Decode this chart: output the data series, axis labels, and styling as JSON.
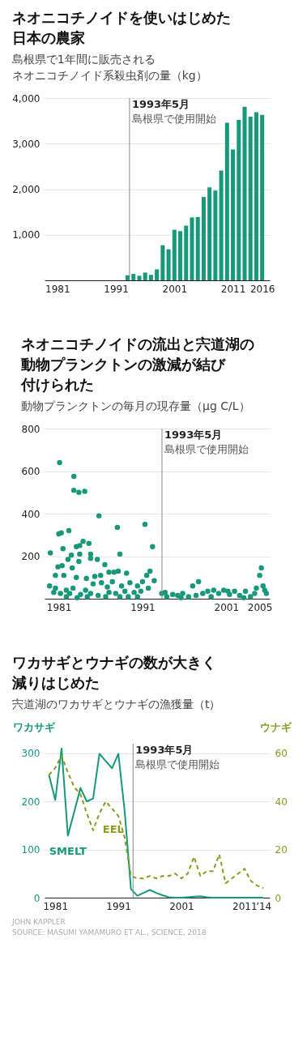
{
  "chart_data": [
    {
      "type": "bar",
      "title": "ネオニコチノイドを使いはじめた日本の農家",
      "subtitle": "島根県で1年間に販売されるネオニコチノイド系殺虫剤の量（kg）",
      "x": [
        1993,
        1994,
        1995,
        1996,
        1997,
        1998,
        1999,
        2000,
        2001,
        2002,
        2003,
        2004,
        2005,
        2006,
        2007,
        2008,
        2009,
        2010,
        2011,
        2012,
        2013,
        2014,
        2015,
        2016
      ],
      "values": [
        110,
        140,
        100,
        170,
        120,
        240,
        770,
        680,
        1110,
        1080,
        1200,
        1380,
        1390,
        1830,
        2040,
        1970,
        2410,
        3460,
        2870,
        3520,
        3810,
        3590,
        3690,
        3630
      ],
      "color": "#17987a",
      "xlim": [
        1979.5,
        2016.6
      ],
      "xticks": [
        1981,
        1991,
        2001,
        2011,
        2016
      ],
      "ylim": [
        0,
        4000
      ],
      "yticks": [
        {
          "value": 1000,
          "label": "1,000"
        },
        {
          "value": 2000,
          "label": "2,000"
        },
        {
          "value": 3000,
          "label": "3,000"
        },
        {
          "value": 4000,
          "label": "4,000"
        }
      ],
      "grid": "y",
      "ref_lines": [
        {
          "axis": "x",
          "value": 1993.33,
          "label": "1993年5月島根県で使用開始",
          "color": "#888888"
        }
      ]
    },
    {
      "type": "scatter",
      "title": "ネオニコチノイドの流出と宍道湖の動物プランクトンの激減が結び付けられた",
      "subtitle": "動物プランクトンの毎月の現存量（μg C/L）",
      "x": [
        1981.1,
        1982.8,
        1982.8,
        1983.4,
        1984.1,
        1985.8,
        1991.3,
        1988.0,
        1982.2,
        1981.0,
        1981.3,
        1983.9,
        1984.6,
        1983.1,
        1983.5,
        1992.2,
        1981.5,
        1980.0,
        1982.5,
        1983.5,
        1984.8,
        1988.3,
        1982.1,
        1983.4,
        1984.8,
        1985.6,
        1980.9,
        1981.4,
        1986.5,
        1982.6,
        1980.6,
        1981.6,
        1983.1,
        1984.3,
        1985.3,
        1986.0,
        1987.0,
        1987.6,
        1988.1,
        1989.1,
        1991.9,
        1991.5,
        1992.4,
        1979.9,
        1980.6,
        1981.9,
        1982.7,
        1984.2,
        1985.1,
        1986.1,
        1986.8,
        1987.4,
        1988.5,
        1989.5,
        1990.4,
        1991.0,
        1991.7,
        1980.4,
        1981.2,
        1982.3,
        1983.6,
        1984.8,
        1985.7,
        1987.0,
        1987.8,
        1988.9,
        1990.0,
        1990.8,
        1981.9,
        1983.2,
        1984.4,
        1986.6,
        1988.3,
        1989.3,
        1990.4,
        1993.3,
        1993.9,
        1994.6,
        1995.2,
        1995.8,
        1996.5,
        1997.0,
        1997.7,
        1998.2,
        1998.8,
        1999.5,
        2000.1,
        2000.7,
        2001.4,
        2002.0,
        2002.6,
        2003.3,
        2003.9,
        2004.6,
        2005.0,
        2005.2,
        2005.4,
        2005.8,
        1993.7,
        1995.6,
        1997.4,
        1999.2,
        2001.2,
        2003.1,
        2004.4,
        2005.6
      ],
      "values": [
        640,
        575,
        510,
        500,
        505,
        390,
        350,
        335,
        320,
        305,
        310,
        270,
        260,
        245,
        250,
        245,
        235,
        215,
        205,
        210,
        210,
        210,
        185,
        175,
        190,
        185,
        150,
        155,
        160,
        145,
        110,
        110,
        100,
        95,
        105,
        110,
        125,
        125,
        130,
        120,
        130,
        110,
        85,
        60,
        50,
        40,
        50,
        40,
        70,
        75,
        55,
        80,
        60,
        75,
        60,
        80,
        50,
        30,
        25,
        25,
        20,
        25,
        15,
        30,
        25,
        35,
        30,
        35,
        10,
        5,
        10,
        10,
        10,
        10,
        10,
        25,
        10,
        20,
        15,
        25,
        10,
        60,
        80,
        25,
        35,
        40,
        25,
        40,
        20,
        35,
        15,
        35,
        10,
        50,
        110,
        145,
        60,
        25,
        30,
        5,
        15,
        10,
        35,
        5,
        25,
        40
      ],
      "color": "#17987a",
      "marker": "circle",
      "xlim": [
        1979.3,
        2006.2
      ],
      "xticks": [
        1981,
        1991,
        2001,
        2005
      ],
      "ylim": [
        0,
        800
      ],
      "yticks": [
        200,
        400,
        600,
        800
      ],
      "grid": "y",
      "ref_lines": [
        {
          "axis": "x",
          "value": 1993.33,
          "label": "1993年5月島根県で使用開始",
          "color": "#888888"
        }
      ]
    },
    {
      "type": "line",
      "title": "ワカサギとウナギの数が大きく減りはじめた",
      "subtitle": "宍道湖のワカサギとウナギの漁獲量（t）",
      "ylabel": "ワカサギ",
      "y2label": "ウナギ",
      "x": [
        1980,
        1981,
        1982,
        1983,
        1984,
        1985,
        1986,
        1987,
        1988,
        1989,
        1990,
        1991,
        1992,
        1993,
        1994,
        1995,
        1996,
        1997,
        1998,
        1999,
        2000,
        2001,
        2002,
        2003,
        2004,
        2005,
        2006,
        2007,
        2008,
        2009,
        2010,
        2011,
        2012,
        2013,
        2014
      ],
      "series": [
        {
          "name": "SMELT",
          "color": "#17987a",
          "line_style": "solid",
          "values": [
            255,
            203,
            310,
            129,
            178,
            228,
            200,
            206,
            299,
            284,
            269,
            299,
            180,
            18,
            4,
            10,
            16,
            10,
            5,
            1,
            0,
            0,
            1,
            2,
            3,
            1,
            0,
            0,
            0,
            0,
            0,
            0,
            0,
            0,
            0
          ]
        },
        {
          "name": "EEL",
          "color": "#8c9a1e",
          "line_style": "dashed",
          "axis": "y2",
          "values": [
            51,
            54,
            59,
            52,
            46,
            43,
            35,
            28,
            35,
            40,
            37,
            34,
            25,
            9,
            8,
            8,
            9,
            8,
            9,
            9,
            10,
            8,
            10,
            17,
            9,
            11,
            11,
            18,
            6,
            8,
            10,
            12,
            7,
            5,
            4
          ]
        }
      ],
      "xlim": [
        1979.3,
        2015
      ],
      "xticks": [
        1981,
        1991,
        2001,
        2011,
        {
          "value": 2014,
          "label": "’14"
        }
      ],
      "ylim": [
        0,
        320
      ],
      "yticks": [
        0,
        100,
        200,
        300
      ],
      "y2lim": [
        0,
        64
      ],
      "y2ticks": [
        0,
        20,
        40,
        60
      ],
      "grid": "y",
      "ref_lines": [
        {
          "axis": "x",
          "value": 1993.33,
          "label": "1993年5月島根県で使用開始",
          "color": "#888888"
        }
      ],
      "annotations": [
        "JOHN KAPPLER",
        "SOURCE: MASUMI YAMAMURO ET AL., SCIENCE, 2018"
      ]
    }
  ]
}
